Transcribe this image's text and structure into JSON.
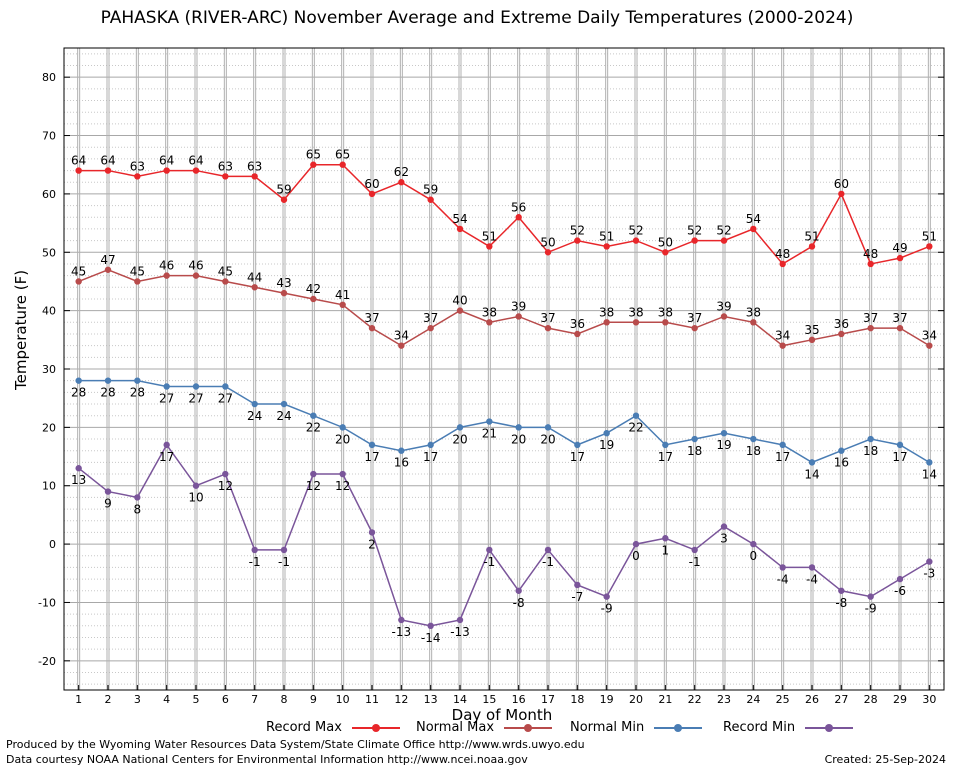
{
  "title": "PAHASKA (RIVER-ARC) November Average and Extreme Daily Temperatures (2000-2024)",
  "footer": {
    "line1": "Produced by the Wyoming Water Resources Data System/State Climate Office http://www.wrds.uwyo.edu",
    "line2": "Data courtesy NOAA National Centers for Environmental Information http://www.ncei.noaa.gov",
    "created": "Created: 25-Sep-2024"
  },
  "chart_data": {
    "type": "line",
    "xlabel": "Day of Month",
    "ylabel": "Temperature (F)",
    "xlim": [
      0.5,
      30.5
    ],
    "ylim": [
      -25,
      85
    ],
    "yticks": [
      -20,
      -10,
      0,
      10,
      20,
      30,
      40,
      50,
      60,
      70,
      80
    ],
    "x": [
      1,
      2,
      3,
      4,
      5,
      6,
      7,
      8,
      9,
      10,
      11,
      12,
      13,
      14,
      15,
      16,
      17,
      18,
      19,
      20,
      21,
      22,
      23,
      24,
      25,
      26,
      27,
      28,
      29,
      30
    ],
    "grid": true,
    "legend_position": "bottom",
    "series": [
      {
        "name": "Record Max",
        "color": "#e8262a",
        "label_position": "above",
        "values": [
          64,
          64,
          63,
          64,
          64,
          63,
          63,
          59,
          65,
          65,
          60,
          62,
          59,
          54,
          51,
          56,
          50,
          52,
          51,
          52,
          50,
          52,
          52,
          54,
          48,
          51,
          60,
          48,
          49,
          51
        ]
      },
      {
        "name": "Normal Max",
        "color": "#b84b4b",
        "label_position": "above",
        "values": [
          45,
          47,
          45,
          46,
          46,
          45,
          44,
          43,
          42,
          41,
          37,
          34,
          37,
          40,
          38,
          39,
          37,
          36,
          38,
          38,
          38,
          37,
          39,
          38,
          34,
          35,
          36,
          37,
          37,
          34
        ]
      },
      {
        "name": "Normal Min",
        "color": "#4a7db4",
        "label_position": "below",
        "values": [
          28,
          28,
          28,
          27,
          27,
          27,
          24,
          24,
          22,
          20,
          17,
          16,
          17,
          20,
          21,
          20,
          20,
          17,
          19,
          22,
          17,
          18,
          19,
          18,
          17,
          14,
          16,
          18,
          17,
          14
        ]
      },
      {
        "name": "Record Min",
        "color": "#7a559a",
        "label_position": "below",
        "values": [
          13,
          9,
          8,
          17,
          10,
          12,
          -1,
          -1,
          12,
          12,
          2,
          -13,
          -14,
          -13,
          -1,
          -8,
          -1,
          -7,
          -9,
          0,
          1,
          -1,
          3,
          0,
          -4,
          -4,
          -8,
          -9,
          -6,
          -3
        ]
      }
    ]
  }
}
